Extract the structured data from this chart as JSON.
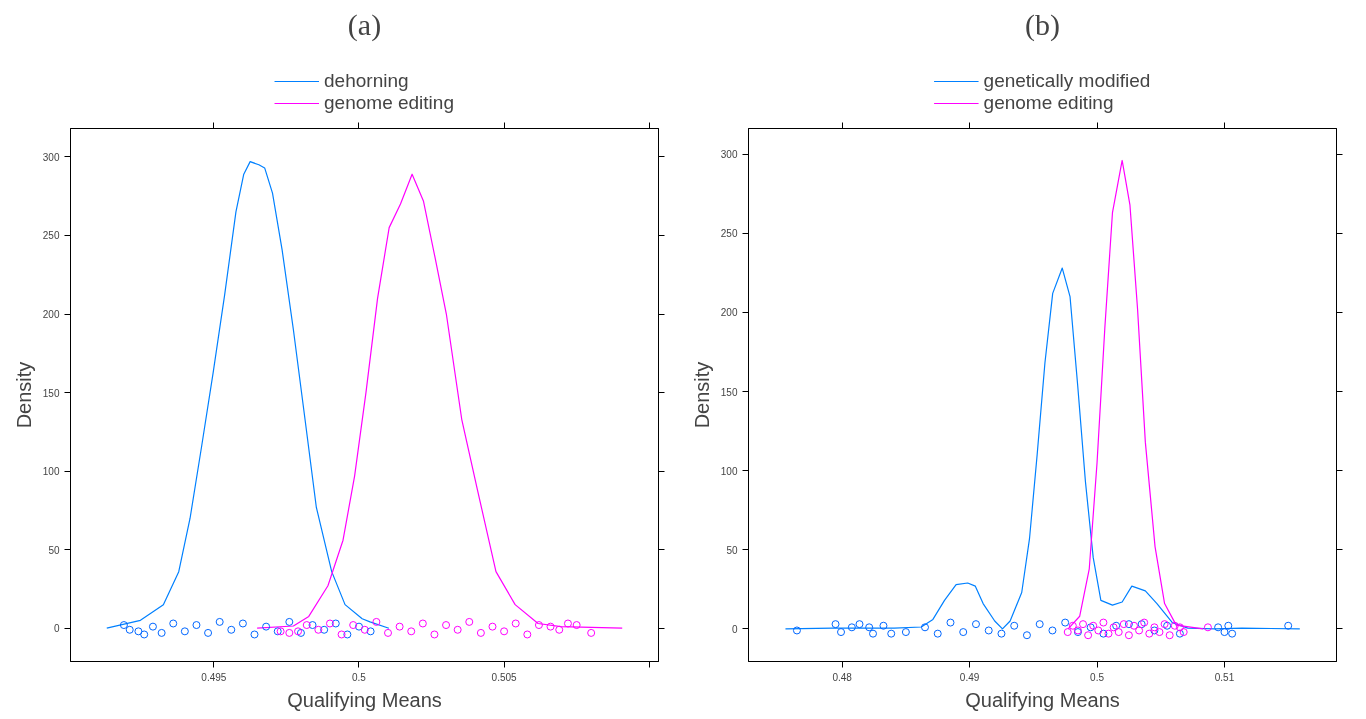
{
  "chart_data": [
    {
      "type": "line",
      "title": "(a)",
      "xlabel": "Qualifying Means",
      "ylabel": "Density",
      "legend": "top",
      "grid": false,
      "line_style": "solid",
      "marker": "none",
      "xlim": [
        0.49006,
        0.51032
      ],
      "ylim": [
        -21.2,
        318.1
      ],
      "xticks": [
        0.495,
        0.5,
        0.505,
        {
          "value": 0.51,
          "label": null
        }
      ],
      "yticks": [
        0,
        50,
        100,
        150,
        200,
        250,
        300
      ],
      "series": [
        {
          "name": "dehorning",
          "color": "#0080ff",
          "x": [
            0.49131,
            0.49247,
            0.49326,
            0.49379,
            0.49418,
            0.49458,
            0.49497,
            0.49537,
            0.49576,
            0.49603,
            0.49625,
            0.49655,
            0.49675,
            0.49702,
            0.49735,
            0.49774,
            0.49814,
            0.49853,
            0.49906,
            0.49952,
            0.50011,
            0.50038,
            0.50103
          ],
          "values": [
            0,
            5,
            15,
            36,
            70,
            116,
            162,
            212,
            265,
            289,
            297,
            295,
            293,
            277,
            241,
            190,
            133,
            77,
            36,
            15,
            6,
            4,
            0
          ]
        },
        {
          "name": "genome editing",
          "color": "#ff00ff",
          "x": [
            0.49649,
            0.49774,
            0.49827,
            0.49893,
            0.49945,
            0.49985,
            0.50024,
            0.50064,
            0.50104,
            0.50143,
            0.50183,
            0.50222,
            0.50262,
            0.50301,
            0.50354,
            0.50407,
            0.50472,
            0.50538,
            0.50617,
            0.50696,
            0.50907
          ],
          "values": [
            0,
            1.4,
            7.5,
            27,
            56,
            97,
            150,
            210,
            255,
            270,
            289,
            272,
            236,
            200,
            133,
            89,
            36,
            15,
            3,
            1,
            0
          ]
        },
        {
          "type": "scatter",
          "marker": "circle",
          "color": "#0066ff",
          "x": [
            0.4919,
            0.4921,
            0.4924,
            0.4926,
            0.4929,
            0.4932,
            0.4936,
            0.494,
            0.4944,
            0.4948,
            0.4952,
            0.4956,
            0.496,
            0.4964,
            0.4968,
            0.4972,
            0.4976,
            0.498,
            0.4984,
            0.4988,
            0.4992,
            0.4996,
            0.5,
            0.5004
          ],
          "values": [
            2,
            -1,
            -2,
            -4,
            1,
            -3,
            3,
            -2,
            2,
            -3,
            4,
            -1,
            3,
            -4,
            1,
            -2,
            4,
            -3,
            2,
            -1,
            3,
            -4,
            1,
            -2
          ]
        },
        {
          "type": "scatter",
          "marker": "circle",
          "color": "#ff00ff",
          "x": [
            0.4973,
            0.4976,
            0.4979,
            0.4982,
            0.4986,
            0.499,
            0.4994,
            0.4998,
            0.5002,
            0.5006,
            0.501,
            0.5014,
            0.5018,
            0.5022,
            0.5026,
            0.503,
            0.5034,
            0.5038,
            0.5042,
            0.5046,
            0.505,
            0.5054,
            0.5058,
            0.5062,
            0.5066,
            0.5069,
            0.5072,
            0.5075,
            0.508
          ],
          "values": [
            -2,
            -3,
            -2,
            2,
            -1,
            3,
            -4,
            2,
            -1,
            4,
            -3,
            1,
            -2,
            3,
            -4,
            2,
            -1,
            4,
            -3,
            1,
            -2,
            3,
            -4,
            2,
            1,
            -1,
            3,
            2,
            -3
          ]
        }
      ]
    },
    {
      "type": "line",
      "title": "(b)",
      "xlabel": "Qualifying Means",
      "ylabel": "Density",
      "legend": "top",
      "grid": false,
      "line_style": "solid",
      "marker": "none",
      "xlim": [
        0.47265,
        0.51879
      ],
      "ylim": [
        -20.6,
        316.2
      ],
      "xticks": [
        0.48,
        0.49,
        0.5,
        0.51
      ],
      "yticks": [
        0,
        50,
        100,
        150,
        200,
        250,
        300
      ],
      "series": [
        {
          "name": "genetically modified",
          "color": "#0080ff",
          "x": [
            0.47555,
            0.47924,
            0.48409,
            0.48621,
            0.48712,
            0.48803,
            0.48894,
            0.48985,
            0.49045,
            0.49106,
            0.49197,
            0.49258,
            0.49318,
            0.49409,
            0.4947,
            0.4953,
            0.49591,
            0.49652,
            0.49727,
            0.49788,
            0.49848,
            0.49909,
            0.4997,
            0.5003,
            0.50121,
            0.50197,
            0.50273,
            0.50379,
            0.5047,
            0.50591,
            0.50712,
            0.50924,
            0.51136,
            0.51591
          ],
          "values": [
            0,
            0.5,
            0.5,
            1.2,
            6,
            18,
            28,
            29,
            27,
            16,
            5,
            0,
            5,
            23,
            57,
            110,
            168,
            212,
            228,
            210,
            154,
            93,
            45,
            18,
            15,
            17,
            27,
            24,
            16,
            4,
            0.5,
            0,
            0.5,
            0
          ]
        },
        {
          "name": "genome editing",
          "color": "#ff00ff",
          "x": [
            0.49773,
            0.49864,
            0.49939,
            0.5,
            0.50061,
            0.50121,
            0.50197,
            0.50258,
            0.50318,
            0.50379,
            0.50455,
            0.5053,
            0.50621,
            0.50833
          ],
          "values": [
            0,
            8,
            38,
            105,
            190,
            263,
            296,
            268,
            202,
            118,
            52,
            16,
            2.4,
            0
          ]
        },
        {
          "type": "scatter",
          "marker": "circle",
          "color": "#0066ff",
          "x": [
            0.47645,
            0.47948,
            0.47991,
            0.48076,
            0.48136,
            0.48212,
            0.48242,
            0.48324,
            0.48385,
            0.485,
            0.4865,
            0.4875,
            0.4885,
            0.4895,
            0.4905,
            0.4915,
            0.4925,
            0.4935,
            0.4945,
            0.4955,
            0.4965,
            0.4975,
            0.4985,
            0.4995,
            0.5005,
            0.5015,
            0.5025,
            0.5035,
            0.5045,
            0.5055,
            0.5065,
            0.5095,
            0.51,
            0.5103,
            0.5106,
            0.515
          ],
          "values": [
            -1,
            3,
            -2,
            1,
            3,
            1,
            -3,
            2,
            -3,
            -2,
            1,
            -3,
            4,
            -2,
            3,
            -1,
            -3,
            2,
            -4,
            3,
            -1,
            4,
            -2,
            1,
            -3,
            2,
            3,
            3,
            -1,
            2,
            -3,
            1,
            -2,
            2,
            -3,
            2
          ]
        },
        {
          "type": "scatter",
          "marker": "circle",
          "color": "#ff00ff",
          "x": [
            0.4977,
            0.4981,
            0.4985,
            0.4989,
            0.4993,
            0.4997,
            0.5001,
            0.5005,
            0.5009,
            0.5013,
            0.5017,
            0.5021,
            0.5025,
            0.5029,
            0.5033,
            0.5037,
            0.5041,
            0.5045,
            0.5049,
            0.5053,
            0.5057,
            0.5061,
            0.5065,
            0.5068,
            0.5087
          ],
          "values": [
            -2,
            2,
            -1,
            3,
            -4,
            2,
            -1,
            4,
            -3,
            1,
            -2,
            3,
            -4,
            2,
            -1,
            4,
            -3,
            1,
            -2,
            3,
            -4,
            2,
            1,
            -2,
            1
          ]
        }
      ]
    }
  ]
}
